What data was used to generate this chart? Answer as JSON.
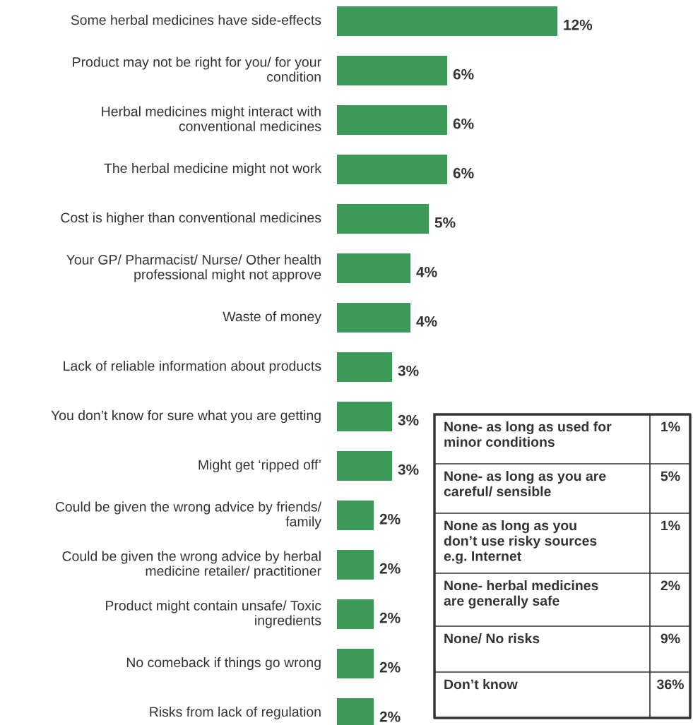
{
  "chart_data": [
    {
      "type": "bar",
      "orientation": "horizontal",
      "color": "#3b9a57",
      "value_labels": [
        "12%",
        "6%",
        "6%",
        "6%",
        "5%",
        "4%",
        "4%",
        "3%",
        "3%",
        "3%",
        "2%",
        "2%",
        "2%",
        "2%",
        "2%"
      ],
      "categories": [
        "Some herbal medicines have side-effects",
        "Product may not be right for you/ for your\ncondition",
        "Herbal medicines might interact with\nconventional medicines",
        "The herbal medicine might not work",
        "Cost is higher than conventional medicines",
        "Your GP/ Pharmacist/ Nurse/ Other health\nprofessional might not approve",
        "Waste of money",
        "Lack of reliable information about products",
        "You don’t know for sure what you are getting",
        "Might get ‘ripped off’",
        "Could be given the wrong advice by friends/\nfamily",
        "Could be given the wrong advice by herbal\nmedicine retailer/ practitioner",
        "Product might contain unsafe/ Toxic\ningredients",
        "No comeback if things go wrong",
        "Risks from lack of regulation"
      ],
      "values": [
        12,
        6,
        6,
        6,
        5,
        4,
        4,
        3,
        3,
        3,
        2,
        2,
        2,
        2,
        2
      ]
    },
    {
      "type": "other",
      "value_labels": [
        "1%",
        "5%",
        "1%",
        "2%",
        "9%",
        "36%"
      ],
      "categories": [
        "None- as long as used for\nminor conditions",
        "None- as long as you are\ncareful/ sensible",
        "None as long as you\ndon’t use risky sources\ne.g. Internet",
        "None- herbal medicines\nare generally safe",
        "None/ No risks",
        "Don’t know"
      ]
    }
  ]
}
